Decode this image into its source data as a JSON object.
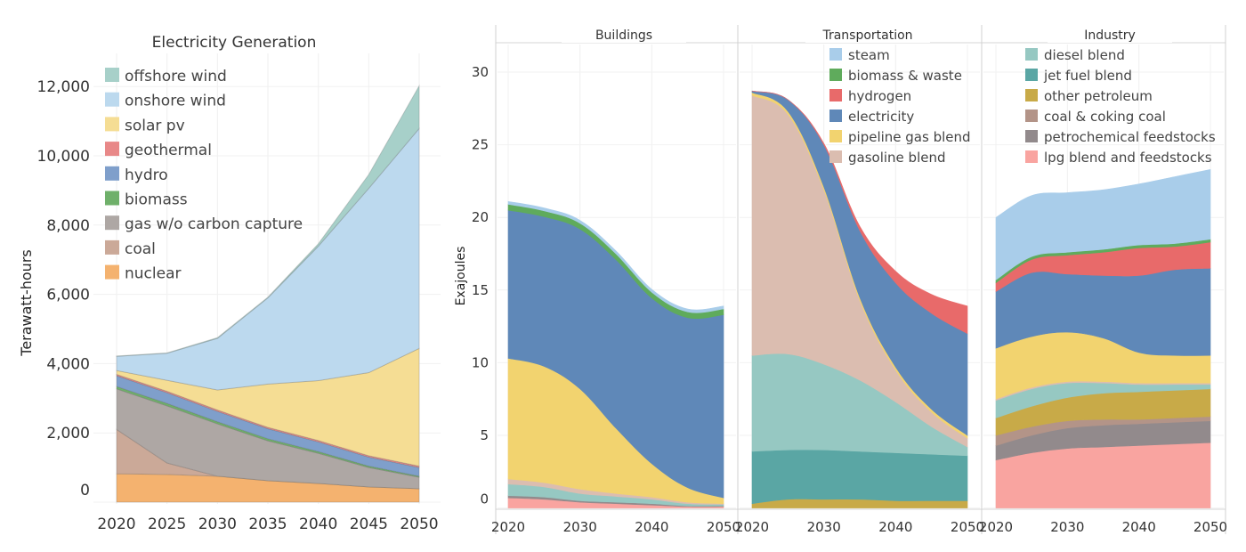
{
  "chart_data": [
    {
      "type": "area",
      "stacked": true,
      "title": "Electricity Generation",
      "xlabel": "",
      "ylabel": "Terawatt-hours",
      "x": [
        2020,
        2025,
        2030,
        2035,
        2040,
        2045,
        2050
      ],
      "x_tick_labels": [
        "2020",
        "2025",
        "2030",
        "2035",
        "2040",
        "2045",
        "2050"
      ],
      "ylim": [
        0,
        12500
      ],
      "y_ticks": [
        0,
        2000,
        4000,
        6000,
        8000,
        10000,
        12000
      ],
      "y_tick_labels": [
        "0",
        "2,000",
        "4,000",
        "6,000",
        "8,000",
        "10,000",
        "12,000"
      ],
      "grid": true,
      "legend_position": "top-left",
      "legend": [
        "offshore wind",
        "onshore wind",
        "solar pv",
        "geothermal",
        "hydro",
        "biomass",
        "gas w/o carbon capture",
        "coal",
        "nuclear"
      ],
      "series": [
        {
          "name": "nuclear",
          "color": "#f4b26f",
          "values": [
            820,
            800,
            750,
            620,
            540,
            440,
            390
          ]
        },
        {
          "name": "coal",
          "color": "#cba998",
          "values": [
            1280,
            330,
            0,
            0,
            0,
            0,
            0
          ]
        },
        {
          "name": "gas w/o carbon capture",
          "color": "#aea7a4",
          "values": [
            1170,
            1650,
            1510,
            1150,
            870,
            560,
            330
          ]
        },
        {
          "name": "biomass",
          "color": "#6fb06a",
          "values": [
            70,
            70,
            60,
            60,
            50,
            40,
            30
          ]
        },
        {
          "name": "hydro",
          "color": "#7f9fcb",
          "values": [
            310,
            310,
            300,
            290,
            280,
            260,
            250
          ]
        },
        {
          "name": "geothermal",
          "color": "#e88888",
          "values": [
            40,
            40,
            40,
            40,
            40,
            40,
            40
          ]
        },
        {
          "name": "solar pv",
          "color": "#f5dd94",
          "values": [
            110,
            320,
            580,
            1250,
            1730,
            2400,
            3400
          ]
        },
        {
          "name": "onshore wind",
          "color": "#bcd9ee",
          "values": [
            410,
            780,
            1490,
            2490,
            3880,
            5320,
            6350
          ]
        },
        {
          "name": "offshore wind",
          "color": "#a7d0c9",
          "values": [
            10,
            10,
            20,
            20,
            70,
            400,
            1230
          ]
        }
      ]
    },
    {
      "type": "area",
      "stacked": true,
      "faceted": true,
      "ylabel": "Exajoules",
      "xlabel": "",
      "x": [
        2020,
        2025,
        2030,
        2035,
        2040,
        2045,
        2050
      ],
      "x_tick_labels": [
        "2020",
        "2030",
        "2040",
        "2050"
      ],
      "ylim": [
        0,
        32
      ],
      "y_ticks": [
        0,
        5,
        10,
        15,
        20,
        25,
        30
      ],
      "y_tick_labels": [
        "0",
        "5",
        "10",
        "15",
        "20",
        "25",
        "30"
      ],
      "grid": true,
      "legend": {
        "position": "top (inside Transportation and Industry panels)",
        "items": [
          {
            "name": "steam",
            "color": "#a9cdea"
          },
          {
            "name": "biomass & waste",
            "color": "#5fab5c"
          },
          {
            "name": "hydrogen",
            "color": "#e86a6a"
          },
          {
            "name": "electricity",
            "color": "#5f88b8"
          },
          {
            "name": "pipeline gas blend",
            "color": "#f2d36f"
          },
          {
            "name": "gasoline blend",
            "color": "#dbbdb0"
          },
          {
            "name": "diesel blend",
            "color": "#96c8c2"
          },
          {
            "name": "jet fuel blend",
            "color": "#5aa6a4"
          },
          {
            "name": "other petroleum",
            "color": "#c8aa48"
          },
          {
            "name": "coal & coking coal",
            "color": "#b39488"
          },
          {
            "name": "petrochemical feedstocks",
            "color": "#928a8c"
          },
          {
            "name": "lpg blend and feedstocks",
            "color": "#f9a4a0"
          }
        ]
      },
      "stack_order": [
        "lpg blend and feedstocks",
        "petrochemical feedstocks",
        "coal & coking coal",
        "other petroleum",
        "jet fuel blend",
        "diesel blend",
        "gasoline blend",
        "pipeline gas blend",
        "electricity",
        "hydrogen",
        "biomass & waste",
        "steam"
      ],
      "panels": [
        {
          "title": "Buildings",
          "series": [
            {
              "name": "lpg blend and feedstocks",
              "values": [
                0.7,
                0.6,
                0.4,
                0.3,
                0.2,
                0.1,
                0.1
              ]
            },
            {
              "name": "petrochemical feedstocks",
              "values": [
                0.15,
                0.15,
                0.1,
                0.1,
                0.1,
                0.05,
                0.05
              ]
            },
            {
              "name": "coal & coking coal",
              "values": [
                0,
                0,
                0,
                0,
                0,
                0,
                0
              ]
            },
            {
              "name": "other petroleum",
              "values": [
                0,
                0,
                0,
                0,
                0,
                0,
                0
              ]
            },
            {
              "name": "jet fuel blend",
              "values": [
                0,
                0,
                0,
                0,
                0,
                0,
                0
              ]
            },
            {
              "name": "diesel blend",
              "values": [
                0.8,
                0.7,
                0.5,
                0.4,
                0.3,
                0.15,
                0.1
              ]
            },
            {
              "name": "gasoline blend",
              "values": [
                0.35,
                0.3,
                0.3,
                0.2,
                0.15,
                0.1,
                0.05
              ]
            },
            {
              "name": "pipeline gas blend",
              "values": [
                8.3,
                8.0,
                6.9,
                4.5,
                2.3,
                1.0,
                0.4
              ]
            },
            {
              "name": "electricity",
              "values": [
                10.2,
                10.3,
                11.0,
                11.6,
                11.4,
                11.7,
                12.6
              ]
            },
            {
              "name": "hydrogen",
              "values": [
                0,
                0,
                0,
                0,
                0,
                0,
                0
              ]
            },
            {
              "name": "biomass & waste",
              "values": [
                0.4,
                0.4,
                0.4,
                0.4,
                0.4,
                0.4,
                0.4
              ]
            },
            {
              "name": "steam",
              "values": [
                0.2,
                0.2,
                0.2,
                0.2,
                0.2,
                0.2,
                0.2
              ]
            }
          ]
        },
        {
          "title": "Transportation",
          "series": [
            {
              "name": "lpg blend and feedstocks",
              "values": [
                0,
                0,
                0,
                0,
                0,
                0,
                0
              ]
            },
            {
              "name": "petrochemical feedstocks",
              "values": [
                0,
                0,
                0,
                0,
                0,
                0,
                0
              ]
            },
            {
              "name": "coal & coking coal",
              "values": [
                0,
                0,
                0,
                0,
                0,
                0,
                0
              ]
            },
            {
              "name": "other petroleum",
              "values": [
                0.3,
                0.6,
                0.6,
                0.6,
                0.5,
                0.5,
                0.5
              ]
            },
            {
              "name": "jet fuel blend",
              "values": [
                3.6,
                3.4,
                3.4,
                3.3,
                3.3,
                3.2,
                3.1
              ]
            },
            {
              "name": "diesel blend",
              "values": [
                6.6,
                6.6,
                5.9,
                4.9,
                3.5,
                1.9,
                0.6
              ]
            },
            {
              "name": "gasoline blend",
              "values": [
                17.9,
                16.5,
                12.0,
                5.5,
                2.2,
                1.0,
                0.6
              ]
            },
            {
              "name": "pipeline gas blend",
              "values": [
                0.2,
                0.2,
                0.2,
                0.2,
                0.2,
                0.2,
                0.2
              ]
            },
            {
              "name": "electricity",
              "values": [
                0.1,
                0.8,
                2.9,
                4.6,
                5.8,
                6.6,
                7.0
              ]
            },
            {
              "name": "hydrogen",
              "values": [
                0,
                0,
                0.1,
                0.3,
                0.8,
                1.3,
                1.9
              ]
            },
            {
              "name": "biomass & waste",
              "values": [
                0,
                0,
                0,
                0,
                0,
                0,
                0
              ]
            },
            {
              "name": "steam",
              "values": [
                0,
                0,
                0,
                0,
                0,
                0,
                0
              ]
            }
          ]
        },
        {
          "title": "Industry",
          "series": [
            {
              "name": "lpg blend and feedstocks",
              "values": [
                3.3,
                3.8,
                4.1,
                4.2,
                4.3,
                4.4,
                4.5
              ]
            },
            {
              "name": "petrochemical feedstocks",
              "values": [
                1.0,
                1.2,
                1.4,
                1.5,
                1.5,
                1.5,
                1.5
              ]
            },
            {
              "name": "coal & coking coal",
              "values": [
                0.7,
                0.6,
                0.5,
                0.4,
                0.3,
                0.3,
                0.3
              ]
            },
            {
              "name": "other petroleum",
              "values": [
                1.2,
                1.4,
                1.6,
                1.8,
                1.9,
                1.9,
                1.9
              ]
            },
            {
              "name": "jet fuel blend",
              "values": [
                0,
                0,
                0,
                0,
                0,
                0,
                0
              ]
            },
            {
              "name": "diesel blend",
              "values": [
                1.2,
                1.2,
                1.0,
                0.7,
                0.5,
                0.4,
                0.3
              ]
            },
            {
              "name": "gasoline blend",
              "values": [
                0.1,
                0.1,
                0.1,
                0.1,
                0.1,
                0.1,
                0.1
              ]
            },
            {
              "name": "pipeline gas blend",
              "values": [
                3.5,
                3.5,
                3.4,
                3.0,
                2.1,
                1.9,
                1.9
              ]
            },
            {
              "name": "electricity",
              "values": [
                3.9,
                4.4,
                4.0,
                4.3,
                5.3,
                5.9,
                6.0
              ]
            },
            {
              "name": "hydrogen",
              "values": [
                0.6,
                0.9,
                1.3,
                1.6,
                1.9,
                1.6,
                1.8
              ]
            },
            {
              "name": "biomass & waste",
              "values": [
                0.2,
                0.2,
                0.2,
                0.2,
                0.2,
                0.2,
                0.2
              ]
            },
            {
              "name": "steam",
              "values": [
                4.3,
                4.2,
                4.1,
                4.1,
                4.2,
                4.6,
                4.8
              ]
            }
          ]
        }
      ]
    }
  ],
  "left_legend_order": [
    "offshore wind",
    "onshore wind",
    "solar pv",
    "geothermal",
    "hydro",
    "biomass",
    "gas w/o carbon capture",
    "coal",
    "nuclear"
  ],
  "transport_legend_order": [
    "steam",
    "biomass & waste",
    "hydrogen",
    "electricity",
    "pipeline gas blend",
    "gasoline blend"
  ],
  "industry_legend_order": [
    "diesel blend",
    "jet fuel blend",
    "other petroleum",
    "coal & coking coal",
    "petrochemical feedstocks",
    "lpg blend and feedstocks"
  ]
}
